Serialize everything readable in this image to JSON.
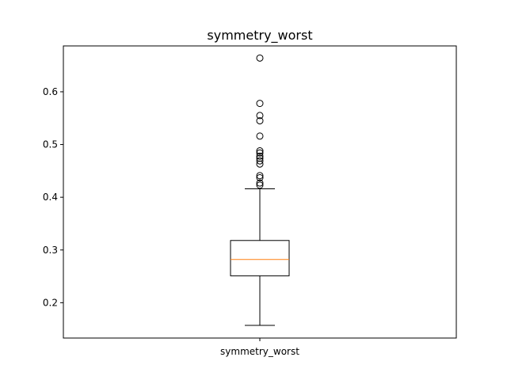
{
  "chart_data": {
    "type": "box",
    "title": "symmetry_worst",
    "categories": [
      "symmetry_worst"
    ],
    "xlabel": "",
    "ylabel": "",
    "ylim": [
      0.133,
      0.687
    ],
    "yticks": [
      0.2,
      0.3,
      0.4,
      0.5,
      0.6
    ],
    "ytick_labels": [
      "0.2",
      "0.3",
      "0.4",
      "0.5",
      "0.6"
    ],
    "grid": false,
    "series": [
      {
        "whisker_low": 0.157,
        "q1": 0.251,
        "median": 0.282,
        "q3": 0.318,
        "whisker_high": 0.416,
        "outliers": [
          0.664,
          0.578,
          0.555,
          0.545,
          0.516,
          0.488,
          0.484,
          0.478,
          0.474,
          0.469,
          0.463,
          0.441,
          0.437,
          0.427,
          0.423
        ]
      }
    ],
    "colors": {
      "box": "#000000",
      "median": "#ff7f0e",
      "outlier": "#000000"
    }
  }
}
